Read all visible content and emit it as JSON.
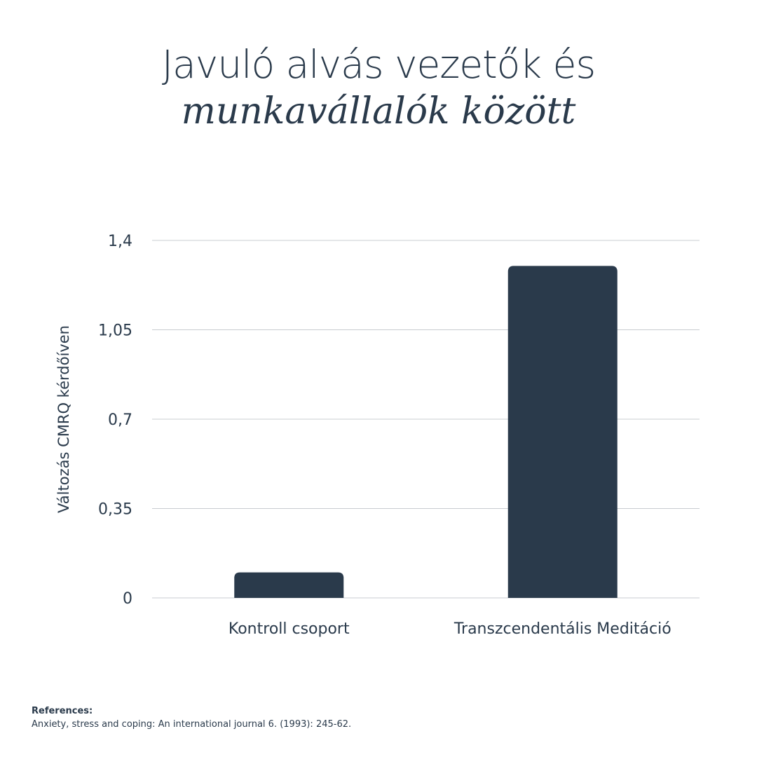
{
  "title": {
    "line1": "Javuló alvás vezetők és",
    "line2": "munkavállalók között"
  },
  "chart_data": {
    "type": "bar",
    "categories": [
      "Kontroll csoport",
      "Transzcendentális Meditáció"
    ],
    "values": [
      0.1,
      1.3
    ],
    "ylabel": "Változás CMRQ kérdőíven",
    "xlabel": "",
    "ylim": [
      0,
      1.4
    ],
    "yticks": [
      0,
      0.35,
      0.7,
      1.05,
      1.4
    ],
    "ytick_labels": [
      "0",
      "0,35",
      "0,7",
      "1,05",
      "1,4"
    ],
    "grid": true,
    "bar_color": "#2a3a4b",
    "grid_color": "#c8ccd0"
  },
  "references": {
    "heading": "References:",
    "text": "Anxiety, stress and coping: An international journal 6. (1993): 245-62."
  }
}
